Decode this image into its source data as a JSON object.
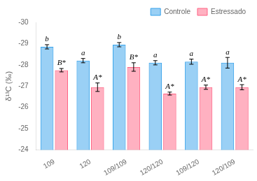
{
  "chart_data": {
    "type": "bar",
    "categories": [
      "109",
      "120",
      "109/109",
      "120/120",
      "109/120",
      "120/109"
    ],
    "series": [
      {
        "name": "Controle",
        "values": [
          -28.85,
          -28.2,
          -28.95,
          -28.1,
          -28.15,
          -28.1
        ],
        "errors": [
          0.1,
          0.1,
          0.1,
          0.1,
          0.12,
          0.25
        ],
        "annotations": [
          "b",
          "a",
          "b",
          "a",
          "a",
          "a"
        ]
      },
      {
        "name": "Estressado",
        "values": [
          -27.75,
          -26.95,
          -27.9,
          -26.65,
          -26.95,
          -26.95
        ],
        "errors": [
          0.08,
          0.2,
          0.2,
          0.07,
          0.1,
          0.12
        ],
        "annotations": [
          "B*",
          "A*",
          "B*",
          "A*",
          "A*",
          "A*"
        ]
      }
    ],
    "y_label": "δ¹³C (‰)",
    "ylim": [
      -24,
      -30
    ],
    "yticks": [
      -30,
      -29,
      -28,
      -27,
      -26,
      -25,
      -24
    ],
    "grid": false,
    "legend": "upper right"
  }
}
